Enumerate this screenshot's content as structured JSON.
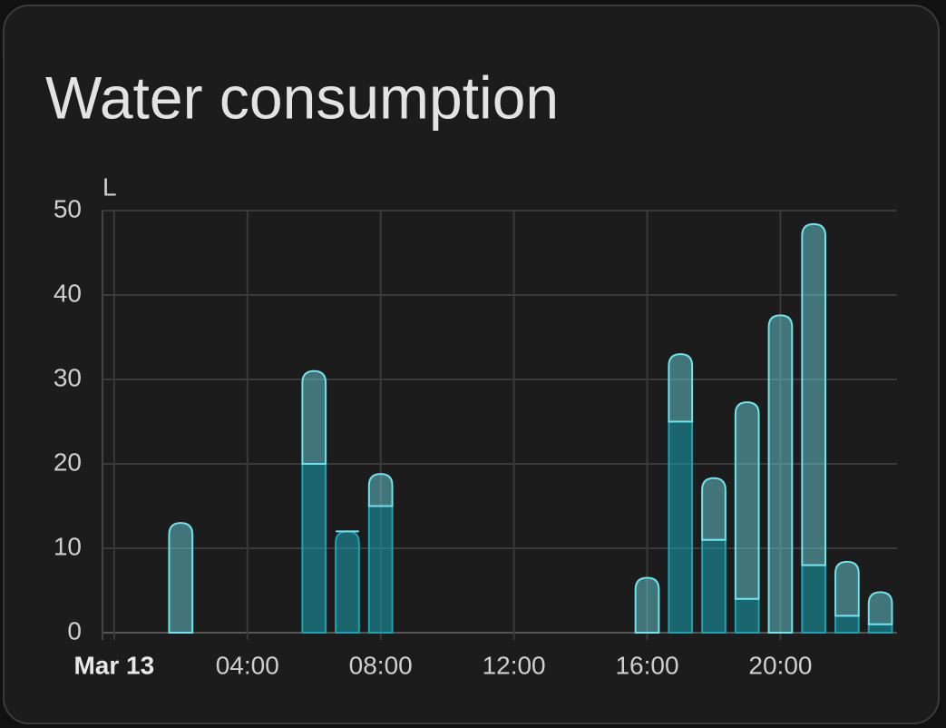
{
  "chart_data": {
    "type": "bar",
    "stacked": true,
    "title": "Water consumption",
    "y_unit": "L",
    "x": [
      2,
      6,
      7,
      8,
      16,
      17,
      18,
      19,
      20,
      21,
      22,
      23
    ],
    "series": [
      {
        "color": "#1aa3b3",
        "values": [
          0,
          20,
          12,
          15,
          0,
          25,
          11,
          4,
          0,
          8,
          2,
          1
        ]
      },
      {
        "color": "#6fe3ee",
        "values": [
          13,
          11,
          0,
          3.8,
          6.5,
          8,
          7.3,
          23.3,
          37.6,
          40.4,
          6.4,
          3.8
        ]
      }
    ],
    "xlim": [
      -0.35,
      23.5
    ],
    "xticks": [
      {
        "value": 0,
        "label": "Mar 13"
      },
      {
        "value": 4,
        "label": "04:00"
      },
      {
        "value": 8,
        "label": "08:00"
      },
      {
        "value": 12,
        "label": "12:00"
      },
      {
        "value": 16,
        "label": "16:00"
      },
      {
        "value": 20,
        "label": "20:00"
      }
    ],
    "ylim": [
      0,
      50
    ],
    "yticks": [
      0,
      10,
      20,
      30,
      40,
      50
    ],
    "grid": true
  }
}
